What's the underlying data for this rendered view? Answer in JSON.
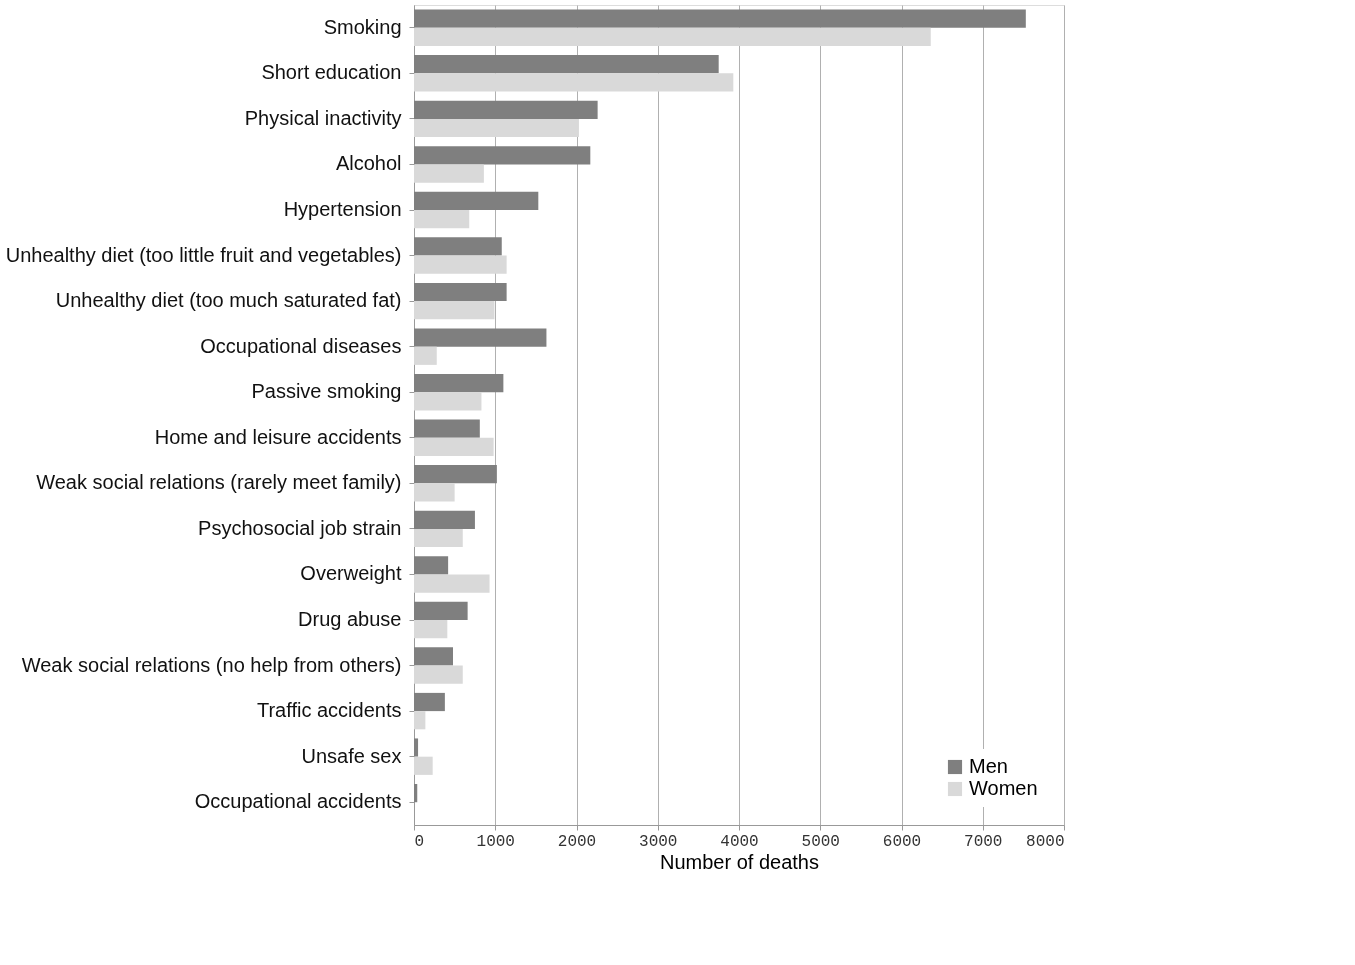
{
  "chart_data": {
    "type": "bar",
    "orientation": "horizontal",
    "xlabel": "Number of deaths",
    "categories": [
      "Smoking",
      "Short education",
      "Physical inactivity",
      "Alcohol",
      "Hypertension",
      "Unhealthy diet (too little fruit and vegetables)",
      "Unhealthy diet (too much saturated fat)",
      "Occupational diseases",
      "Passive smoking",
      "Home and leisure accidents",
      "Weak social relations (rarely meet family)",
      "Psychosocial job strain",
      "Overweight",
      "Drug abuse",
      "Weak social relations (no help from others)",
      "Traffic accidents",
      "Unsafe sex",
      "Occupational accidents"
    ],
    "series": [
      {
        "name": "Men",
        "color": "#7f7f7f",
        "values": [
          7530,
          3750,
          2260,
          2170,
          1530,
          1080,
          1140,
          1630,
          1100,
          810,
          1020,
          750,
          420,
          660,
          480,
          380,
          50,
          40
        ]
      },
      {
        "name": "Women",
        "color": "#d9d9d9",
        "values": [
          6360,
          3930,
          2030,
          860,
          680,
          1140,
          990,
          280,
          830,
          980,
          500,
          600,
          930,
          410,
          600,
          140,
          230,
          null
        ]
      }
    ],
    "xlim": [
      0,
      8000
    ],
    "xticks": [
      0,
      1000,
      2000,
      3000,
      4000,
      5000,
      6000,
      7000,
      8000
    ],
    "grid": "x",
    "legend": "bottom right"
  }
}
